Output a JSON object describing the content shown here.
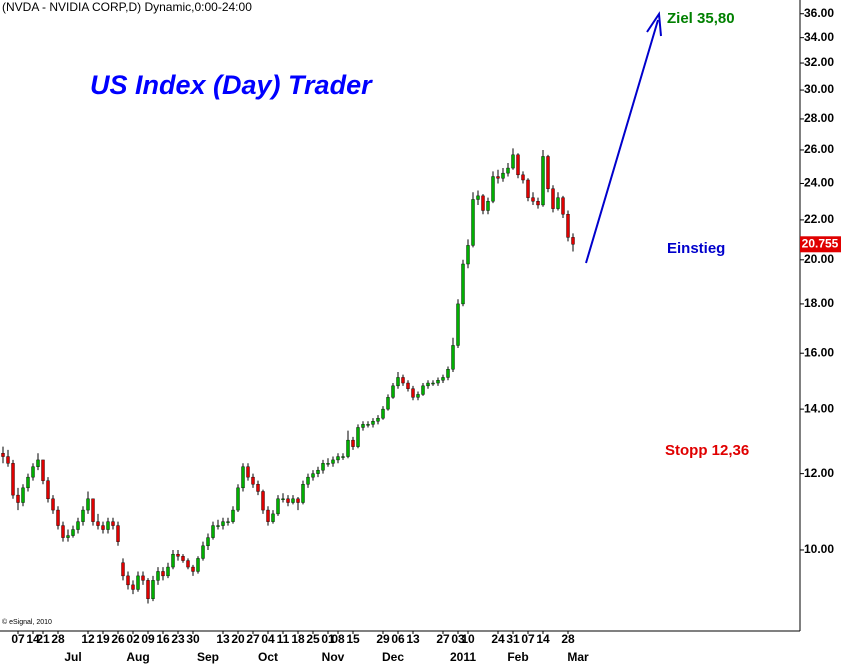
{
  "chart_data": {
    "type": "candlestick",
    "title": "(NVDA - NVIDIA CORP,D) Dynamic,0:00-24:00",
    "copyright": "© eSignal, 2010",
    "annotations": {
      "headline": "US Index (Day) Trader",
      "target": "Ziel 35,80",
      "entry": "Einstieg",
      "stop": "Stopp 12,36"
    },
    "up_color": "#00b000",
    "down_color": "#e00000",
    "wick_color": "#000000",
    "log_scale": true,
    "ylim": [
      8.26,
      37.2
    ],
    "yticks": [
      {
        "value": 10,
        "label": "10.00"
      },
      {
        "value": 12,
        "label": "12.00"
      },
      {
        "value": 14,
        "label": "14.00"
      },
      {
        "value": 16,
        "label": "16.00"
      },
      {
        "value": 18,
        "label": "18.00"
      },
      {
        "value": 20,
        "label": "20.00"
      },
      {
        "value": 22,
        "label": "22.00"
      },
      {
        "value": 24,
        "label": "24.00"
      },
      {
        "value": 26,
        "label": "26.00"
      },
      {
        "value": 28,
        "label": "28.00"
      },
      {
        "value": 30,
        "label": "30.00"
      },
      {
        "value": 32,
        "label": "32.00"
      },
      {
        "value": 34,
        "label": "34.00"
      },
      {
        "value": 36,
        "label": "36.00"
      }
    ],
    "xlim": [
      -0.6,
      159.4
    ],
    "xticks": [
      {
        "value": 3,
        "label": "07"
      },
      {
        "value": 6,
        "label": "14"
      },
      {
        "value": 8,
        "label": "21"
      },
      {
        "value": 11,
        "label": "28"
      },
      {
        "value": 17,
        "label": "12"
      },
      {
        "value": 20,
        "label": "19"
      },
      {
        "value": 23,
        "label": "26"
      },
      {
        "value": 26,
        "label": "02"
      },
      {
        "value": 29,
        "label": "09"
      },
      {
        "value": 32,
        "label": "16"
      },
      {
        "value": 35,
        "label": "23"
      },
      {
        "value": 38,
        "label": "30"
      },
      {
        "value": 44,
        "label": "13"
      },
      {
        "value": 47,
        "label": "20"
      },
      {
        "value": 50,
        "label": "27"
      },
      {
        "value": 53,
        "label": "04"
      },
      {
        "value": 56,
        "label": "11"
      },
      {
        "value": 59,
        "label": "18"
      },
      {
        "value": 62,
        "label": "25"
      },
      {
        "value": 65,
        "label": "01"
      },
      {
        "value": 67,
        "label": "08"
      },
      {
        "value": 70,
        "label": "15"
      },
      {
        "value": 76,
        "label": "29"
      },
      {
        "value": 79,
        "label": "06"
      },
      {
        "value": 82,
        "label": "13"
      },
      {
        "value": 88,
        "label": "27"
      },
      {
        "value": 91,
        "label": "03"
      },
      {
        "value": 93,
        "label": "10"
      },
      {
        "value": 99,
        "label": "24"
      },
      {
        "value": 102,
        "label": "31"
      },
      {
        "value": 105,
        "label": "07"
      },
      {
        "value": 108,
        "label": "14"
      },
      {
        "value": 113,
        "label": "28"
      }
    ],
    "month_ticks": [
      {
        "value": 14,
        "label": "Jul"
      },
      {
        "value": 27,
        "label": "Aug"
      },
      {
        "value": 41,
        "label": "Sep"
      },
      {
        "value": 53,
        "label": "Oct"
      },
      {
        "value": 66,
        "label": "Nov"
      },
      {
        "value": 78,
        "label": "Dec"
      },
      {
        "value": 92,
        "label": "2011"
      },
      {
        "value": 103,
        "label": "Feb"
      },
      {
        "value": 115,
        "label": "Mar"
      }
    ],
    "ohlc": [
      [
        12.6,
        12.8,
        12.3,
        12.5
      ],
      [
        12.5,
        12.7,
        12.2,
        12.3
      ],
      [
        12.3,
        12.4,
        11.3,
        11.4
      ],
      [
        11.4,
        11.6,
        11.0,
        11.2
      ],
      [
        11.2,
        11.7,
        11.1,
        11.6
      ],
      [
        11.6,
        12.0,
        11.5,
        11.9
      ],
      [
        11.9,
        12.3,
        11.8,
        12.2
      ],
      [
        12.2,
        12.6,
        12.1,
        12.4
      ],
      [
        12.4,
        12.4,
        11.7,
        11.8
      ],
      [
        11.8,
        11.9,
        11.2,
        11.3
      ],
      [
        11.3,
        11.4,
        10.9,
        11.0
      ],
      [
        11.0,
        11.1,
        10.5,
        10.6
      ],
      [
        10.6,
        10.7,
        10.2,
        10.3
      ],
      [
        10.3,
        10.5,
        10.2,
        10.35
      ],
      [
        10.35,
        10.6,
        10.3,
        10.5
      ],
      [
        10.5,
        10.8,
        10.4,
        10.7
      ],
      [
        10.7,
        11.1,
        10.6,
        11.0
      ],
      [
        11.0,
        11.5,
        10.9,
        11.3
      ],
      [
        11.3,
        11.3,
        10.6,
        10.7
      ],
      [
        10.7,
        10.9,
        10.5,
        10.6
      ],
      [
        10.6,
        10.7,
        10.4,
        10.5
      ],
      [
        10.5,
        10.8,
        10.4,
        10.7
      ],
      [
        10.7,
        10.8,
        10.5,
        10.6
      ],
      [
        10.6,
        10.7,
        10.1,
        10.2
      ],
      [
        9.7,
        9.8,
        9.3,
        9.4
      ],
      [
        9.4,
        9.5,
        9.1,
        9.2
      ],
      [
        9.2,
        9.3,
        9.0,
        9.1
      ],
      [
        9.1,
        9.5,
        9.05,
        9.4
      ],
      [
        9.4,
        9.5,
        9.2,
        9.3
      ],
      [
        9.3,
        9.35,
        8.8,
        8.9
      ],
      [
        8.9,
        9.4,
        8.85,
        9.3
      ],
      [
        9.3,
        9.6,
        9.2,
        9.5
      ],
      [
        9.5,
        9.6,
        9.3,
        9.4
      ],
      [
        9.4,
        9.7,
        9.35,
        9.6
      ],
      [
        9.6,
        10.0,
        9.55,
        9.9
      ],
      [
        9.9,
        10.0,
        9.75,
        9.85
      ],
      [
        9.85,
        9.9,
        9.7,
        9.75
      ],
      [
        9.75,
        9.8,
        9.55,
        9.6
      ],
      [
        9.6,
        9.65,
        9.4,
        9.5
      ],
      [
        9.5,
        9.85,
        9.45,
        9.8
      ],
      [
        9.8,
        10.2,
        9.75,
        10.1
      ],
      [
        10.1,
        10.4,
        10.0,
        10.3
      ],
      [
        10.3,
        10.7,
        10.25,
        10.6
      ],
      [
        10.6,
        10.75,
        10.5,
        10.6
      ],
      [
        10.6,
        10.8,
        10.5,
        10.7
      ],
      [
        10.7,
        10.8,
        10.6,
        10.7
      ],
      [
        10.7,
        11.1,
        10.65,
        11.0
      ],
      [
        11.0,
        11.7,
        10.95,
        11.6
      ],
      [
        11.6,
        12.3,
        11.5,
        12.2
      ],
      [
        12.2,
        12.3,
        11.8,
        11.9
      ],
      [
        11.9,
        12.0,
        11.6,
        11.7
      ],
      [
        11.7,
        11.8,
        11.4,
        11.5
      ],
      [
        11.5,
        11.55,
        10.9,
        11.0
      ],
      [
        11.0,
        11.1,
        10.6,
        10.7
      ],
      [
        10.7,
        11.0,
        10.65,
        10.9
      ],
      [
        10.9,
        11.4,
        10.85,
        11.3
      ],
      [
        11.3,
        11.45,
        11.2,
        11.3
      ],
      [
        11.3,
        11.4,
        11.1,
        11.2
      ],
      [
        11.2,
        11.4,
        11.15,
        11.3
      ],
      [
        11.3,
        11.35,
        11.0,
        11.2
      ],
      [
        11.2,
        11.8,
        11.15,
        11.7
      ],
      [
        11.7,
        12.0,
        11.6,
        11.9
      ],
      [
        11.9,
        12.1,
        11.8,
        12.0
      ],
      [
        12.0,
        12.2,
        11.9,
        12.1
      ],
      [
        12.1,
        12.4,
        12.0,
        12.3
      ],
      [
        12.3,
        12.45,
        12.2,
        12.3
      ],
      [
        12.3,
        12.5,
        12.2,
        12.4
      ],
      [
        12.4,
        12.6,
        12.3,
        12.5
      ],
      [
        12.5,
        12.6,
        12.4,
        12.5
      ],
      [
        12.5,
        13.3,
        12.45,
        13.0
      ],
      [
        13.0,
        13.1,
        12.7,
        12.8
      ],
      [
        12.8,
        13.5,
        12.75,
        13.4
      ],
      [
        13.4,
        13.6,
        13.3,
        13.5
      ],
      [
        13.5,
        13.6,
        13.4,
        13.5
      ],
      [
        13.5,
        13.7,
        13.4,
        13.6
      ],
      [
        13.6,
        13.8,
        13.5,
        13.7
      ],
      [
        13.7,
        14.1,
        13.65,
        14.0
      ],
      [
        14.0,
        14.5,
        13.95,
        14.4
      ],
      [
        14.4,
        14.9,
        14.35,
        14.8
      ],
      [
        14.8,
        15.3,
        14.7,
        15.1
      ],
      [
        15.1,
        15.2,
        14.8,
        14.9
      ],
      [
        14.9,
        15.0,
        14.6,
        14.7
      ],
      [
        14.7,
        14.8,
        14.3,
        14.4
      ],
      [
        14.4,
        14.6,
        14.3,
        14.5
      ],
      [
        14.5,
        14.9,
        14.45,
        14.8
      ],
      [
        14.8,
        15.0,
        14.7,
        14.9
      ],
      [
        14.9,
        15.0,
        14.8,
        14.9
      ],
      [
        14.9,
        15.1,
        14.8,
        15.0
      ],
      [
        15.0,
        15.2,
        14.9,
        15.1
      ],
      [
        15.1,
        15.5,
        15.0,
        15.4
      ],
      [
        15.4,
        16.6,
        15.3,
        16.3
      ],
      [
        16.3,
        18.2,
        16.2,
        18.0
      ],
      [
        18.0,
        20.0,
        17.9,
        19.8
      ],
      [
        19.8,
        21.0,
        19.6,
        20.7
      ],
      [
        20.7,
        23.5,
        20.6,
        23.1
      ],
      [
        23.1,
        23.6,
        22.8,
        23.3
      ],
      [
        23.3,
        23.4,
        22.3,
        22.5
      ],
      [
        22.5,
        23.2,
        22.3,
        23.0
      ],
      [
        23.0,
        24.7,
        22.9,
        24.4
      ],
      [
        24.4,
        24.8,
        24.0,
        24.3
      ],
      [
        24.3,
        24.9,
        24.1,
        24.6
      ],
      [
        24.6,
        25.2,
        24.4,
        24.9
      ],
      [
        24.9,
        26.1,
        24.8,
        25.7
      ],
      [
        25.7,
        25.8,
        24.3,
        24.5
      ],
      [
        24.5,
        24.7,
        24.0,
        24.2
      ],
      [
        24.2,
        24.3,
        23.0,
        23.2
      ],
      [
        23.2,
        23.5,
        22.8,
        23.0
      ],
      [
        23.0,
        23.2,
        22.6,
        22.8
      ],
      [
        22.8,
        26.0,
        22.7,
        25.6
      ],
      [
        25.6,
        25.7,
        23.5,
        23.7
      ],
      [
        23.7,
        23.9,
        22.4,
        22.6
      ],
      [
        22.6,
        23.5,
        22.5,
        23.2
      ],
      [
        23.2,
        23.3,
        22.1,
        22.3
      ],
      [
        22.3,
        22.5,
        20.9,
        21.1
      ],
      [
        21.1,
        21.3,
        20.4,
        20.755
      ]
    ]
  }
}
